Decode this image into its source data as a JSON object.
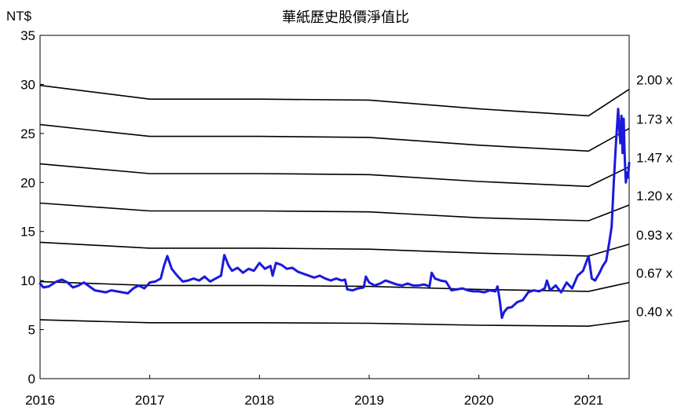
{
  "chart_data": {
    "type": "line",
    "title": "華紙歷史股價淨值比",
    "ylabel": "NT$",
    "xlabel": "",
    "ylim": [
      0,
      35
    ],
    "yticks": [
      "0",
      "5",
      "10",
      "15",
      "20",
      "25",
      "30",
      "35"
    ],
    "xticks": [
      "2016",
      "2017",
      "2018",
      "2019",
      "2020",
      "2021"
    ],
    "xlim": [
      2016.0,
      2021.37
    ],
    "grid": false,
    "colors": {
      "price": "#1a1adc",
      "bands": "#000000"
    },
    "bands": [
      {
        "label": "2.00 x",
        "x": [
          2016.0,
          2017.0,
          2018.0,
          2019.0,
          2020.0,
          2021.0,
          2021.37
        ],
        "values": [
          29.9,
          28.5,
          28.5,
          28.4,
          27.5,
          26.8,
          29.5
        ]
      },
      {
        "label": "1.73 x",
        "x": [
          2016.0,
          2017.0,
          2018.0,
          2019.0,
          2020.0,
          2021.0,
          2021.37
        ],
        "values": [
          25.9,
          24.7,
          24.7,
          24.6,
          23.8,
          23.2,
          25.5
        ]
      },
      {
        "label": "1.47 x",
        "x": [
          2016.0,
          2017.0,
          2018.0,
          2019.0,
          2020.0,
          2021.0,
          2021.37
        ],
        "values": [
          21.9,
          20.9,
          20.9,
          20.8,
          20.1,
          19.6,
          21.6
        ]
      },
      {
        "label": "1.20 x",
        "x": [
          2016.0,
          2017.0,
          2018.0,
          2019.0,
          2020.0,
          2021.0,
          2021.37
        ],
        "values": [
          17.9,
          17.1,
          17.1,
          17.0,
          16.4,
          16.1,
          17.7
        ]
      },
      {
        "label": "0.93 x",
        "x": [
          2016.0,
          2017.0,
          2018.0,
          2019.0,
          2020.0,
          2021.0,
          2021.37
        ],
        "values": [
          13.9,
          13.3,
          13.3,
          13.2,
          12.8,
          12.5,
          13.7
        ]
      },
      {
        "label": "0.67 x",
        "x": [
          2016.0,
          2017.0,
          2018.0,
          2019.0,
          2020.0,
          2021.0,
          2021.37
        ],
        "values": [
          9.9,
          9.5,
          9.5,
          9.4,
          9.1,
          8.9,
          9.8
        ]
      },
      {
        "label": "0.40 x",
        "x": [
          2016.0,
          2017.0,
          2018.0,
          2019.0,
          2020.0,
          2021.0,
          2021.37
        ],
        "values": [
          6.0,
          5.7,
          5.7,
          5.65,
          5.45,
          5.35,
          5.9
        ]
      }
    ],
    "price": {
      "x": [
        2016.0,
        2016.03,
        2016.08,
        2016.15,
        2016.2,
        2016.25,
        2016.3,
        2016.35,
        2016.4,
        2016.45,
        2016.5,
        2016.55,
        2016.6,
        2016.65,
        2016.7,
        2016.75,
        2016.8,
        2016.85,
        2016.9,
        2016.95,
        2017.0,
        2017.05,
        2017.1,
        2017.13,
        2017.16,
        2017.2,
        2017.25,
        2017.3,
        2017.35,
        2017.4,
        2017.45,
        2017.5,
        2017.55,
        2017.6,
        2017.65,
        2017.68,
        2017.72,
        2017.75,
        2017.8,
        2017.85,
        2017.9,
        2017.95,
        2018.0,
        2018.05,
        2018.1,
        2018.12,
        2018.15,
        2018.2,
        2018.25,
        2018.3,
        2018.35,
        2018.4,
        2018.45,
        2018.5,
        2018.55,
        2018.6,
        2018.65,
        2018.7,
        2018.75,
        2018.78,
        2018.8,
        2018.85,
        2018.9,
        2018.95,
        2018.97,
        2019.0,
        2019.05,
        2019.1,
        2019.15,
        2019.2,
        2019.25,
        2019.3,
        2019.35,
        2019.4,
        2019.45,
        2019.5,
        2019.55,
        2019.57,
        2019.6,
        2019.65,
        2019.7,
        2019.75,
        2019.8,
        2019.85,
        2019.9,
        2019.95,
        2020.0,
        2020.05,
        2020.1,
        2020.15,
        2020.17,
        2020.19,
        2020.21,
        2020.23,
        2020.26,
        2020.3,
        2020.35,
        2020.4,
        2020.45,
        2020.5,
        2020.55,
        2020.6,
        2020.62,
        2020.65,
        2020.7,
        2020.75,
        2020.8,
        2020.85,
        2020.9,
        2020.95,
        2021.0,
        2021.03,
        2021.06,
        2021.1,
        2021.13,
        2021.16,
        2021.19,
        2021.21,
        2021.23,
        2021.25,
        2021.27,
        2021.28,
        2021.29,
        2021.3,
        2021.31,
        2021.32,
        2021.33,
        2021.34,
        2021.35,
        2021.36,
        2021.37
      ],
      "values": [
        9.7,
        9.3,
        9.4,
        9.9,
        10.1,
        9.8,
        9.3,
        9.5,
        9.8,
        9.4,
        9.0,
        8.9,
        8.8,
        9.0,
        8.9,
        8.8,
        8.7,
        9.2,
        9.5,
        9.2,
        9.8,
        9.9,
        10.2,
        11.5,
        12.5,
        11.2,
        10.5,
        9.9,
        10.0,
        10.2,
        10.0,
        10.4,
        9.9,
        10.2,
        10.5,
        12.6,
        11.5,
        11.0,
        11.3,
        10.8,
        11.2,
        11.0,
        11.8,
        11.2,
        11.5,
        10.5,
        11.8,
        11.6,
        11.2,
        11.3,
        10.9,
        10.7,
        10.5,
        10.3,
        10.5,
        10.2,
        10.0,
        10.2,
        10.0,
        10.1,
        9.1,
        9.0,
        9.2,
        9.3,
        10.4,
        9.8,
        9.5,
        9.7,
        10.0,
        9.8,
        9.6,
        9.5,
        9.7,
        9.5,
        9.5,
        9.6,
        9.4,
        10.8,
        10.2,
        10.0,
        9.9,
        9.0,
        9.1,
        9.2,
        9.0,
        8.9,
        8.9,
        8.8,
        9.0,
        8.9,
        9.4,
        8.0,
        6.2,
        6.8,
        7.2,
        7.3,
        7.8,
        8.0,
        8.8,
        9.0,
        8.9,
        9.2,
        10.0,
        9.0,
        9.5,
        8.8,
        9.8,
        9.2,
        10.5,
        11.0,
        12.5,
        10.2,
        10.0,
        10.8,
        11.5,
        12.0,
        14.0,
        15.5,
        20.0,
        24.0,
        27.5,
        25.5,
        24.0,
        26.8,
        23.0,
        26.5,
        22.5,
        20.0,
        21.0,
        20.5,
        22.0
      ]
    }
  }
}
